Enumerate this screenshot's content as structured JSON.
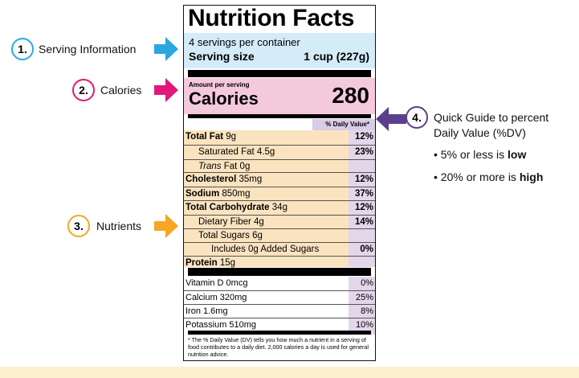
{
  "label": {
    "title": "Nutrition Facts",
    "servings_per_container": "4 servings per container",
    "serving_size_label": "Serving size",
    "serving_size_value": "1 cup (227g)",
    "amount_per_serving": "Amount per serving",
    "calories_label": "Calories",
    "calories_value": "280",
    "dv_header": "% Daily Value*",
    "nutrients": [
      {
        "bold": "Total Fat",
        "rest": " 9g",
        "dv": "12%"
      },
      {
        "bold": "",
        "rest": "Saturated Fat 4.5g",
        "dv": "23%"
      },
      {
        "italic": "Trans",
        "rest": " Fat 0g",
        "dv": ""
      },
      {
        "bold": "Cholesterol",
        "rest": " 35mg",
        "dv": "12%"
      },
      {
        "bold": "Sodium",
        "rest": " 850mg",
        "dv": "37%"
      },
      {
        "bold": "Total Carbohydrate",
        "rest": " 34g",
        "dv": "12%"
      },
      {
        "bold": "",
        "rest": "Dietary Fiber 4g",
        "dv": "14%"
      },
      {
        "bold": "",
        "rest": "Total Sugars 6g",
        "dv": ""
      },
      {
        "bold": "",
        "rest": "Includes 0g Added Sugars",
        "dv": "0%"
      },
      {
        "bold": "Protein",
        "rest": " 15g",
        "dv": ""
      }
    ],
    "vitamins": [
      {
        "name": "Vitamin D 0mcg",
        "dv": "0%"
      },
      {
        "name": "Calcium 320mg",
        "dv": "25%"
      },
      {
        "name": "Iron 1.6mg",
        "dv": "8%"
      },
      {
        "name": "Potassium 510mg",
        "dv": "10%"
      }
    ],
    "footnote": "* The % Daily Value (DV) tells you how much a nutrient in a serving of food contributes to a daily diet. 2,000 calories a day is used for general nutrition advice."
  },
  "callouts": [
    {
      "number": "1.",
      "text": "Serving Information",
      "color": "#29a8e0"
    },
    {
      "number": "2.",
      "text": "Calories",
      "color": "#e0187a"
    },
    {
      "number": "3.",
      "text": "Nutrients",
      "color": "#f5a623"
    },
    {
      "number": "4.",
      "text_line1": "Quick Guide to percent",
      "text_line2": "Daily Value (%DV)",
      "color": "#5b3f8c"
    }
  ],
  "guide": {
    "low_prefix": "• 5% or less is ",
    "low_bold": "low",
    "high_prefix": "• 20% or more is ",
    "high_bold": "high"
  }
}
